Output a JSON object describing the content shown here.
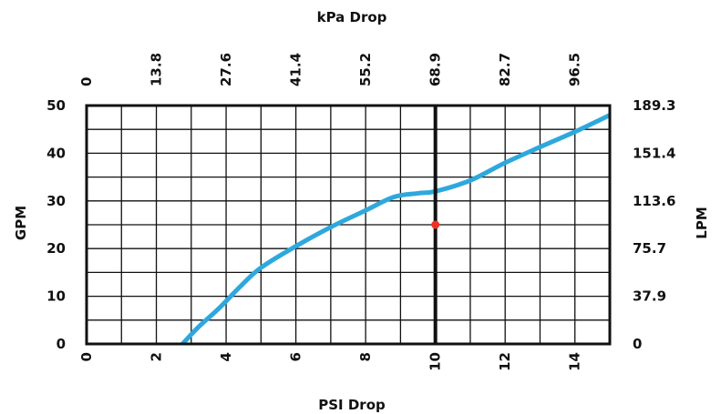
{
  "chart_data": {
    "type": "line",
    "title": "",
    "xlabel": "PSI Drop",
    "ylabel": "GPM",
    "x2label": "kPa Drop",
    "y2label": "LPM",
    "xlim": [
      0,
      15
    ],
    "ylim": [
      0,
      50
    ],
    "grid": true,
    "x_ticks": [
      0,
      2,
      4,
      6,
      8,
      10,
      12,
      14
    ],
    "x_tick_labels": [
      "0",
      "2",
      "4",
      "6",
      "8",
      "10",
      "12",
      "14"
    ],
    "x2_ticks": [
      0,
      2,
      4,
      6,
      8,
      10,
      12,
      14
    ],
    "x2_tick_labels": [
      "0",
      "13.8",
      "27.6",
      "41.4",
      "55.2",
      "68.9",
      "82.7",
      "96.5"
    ],
    "y_ticks": [
      0,
      10,
      20,
      30,
      40,
      50
    ],
    "y_tick_labels": [
      "0",
      "10",
      "20",
      "30",
      "40",
      "50"
    ],
    "y2_ticks": [
      0,
      10,
      20,
      30,
      40,
      50
    ],
    "y2_tick_labels": [
      "0",
      "37.9",
      "75.7",
      "113.6",
      "151.4",
      "189.3"
    ],
    "reference_line": {
      "x": 10
    },
    "series": [
      {
        "color": "#2ea8dc",
        "x": [
          2.75,
          3.2,
          3.8,
          4.4,
          5.0,
          6.0,
          7.0,
          8.0,
          8.8,
          9.5,
          10.0,
          11.0,
          12.0,
          13.0,
          14.0,
          15.0
        ],
        "y": [
          0,
          3.5,
          7.5,
          12,
          16,
          20.5,
          24.5,
          28,
          30.8,
          31.6,
          32,
          34.3,
          38,
          41.3,
          44.5,
          48
        ]
      }
    ],
    "points": [
      {
        "x": 10,
        "y": 25,
        "color": "#ee3124"
      }
    ]
  }
}
